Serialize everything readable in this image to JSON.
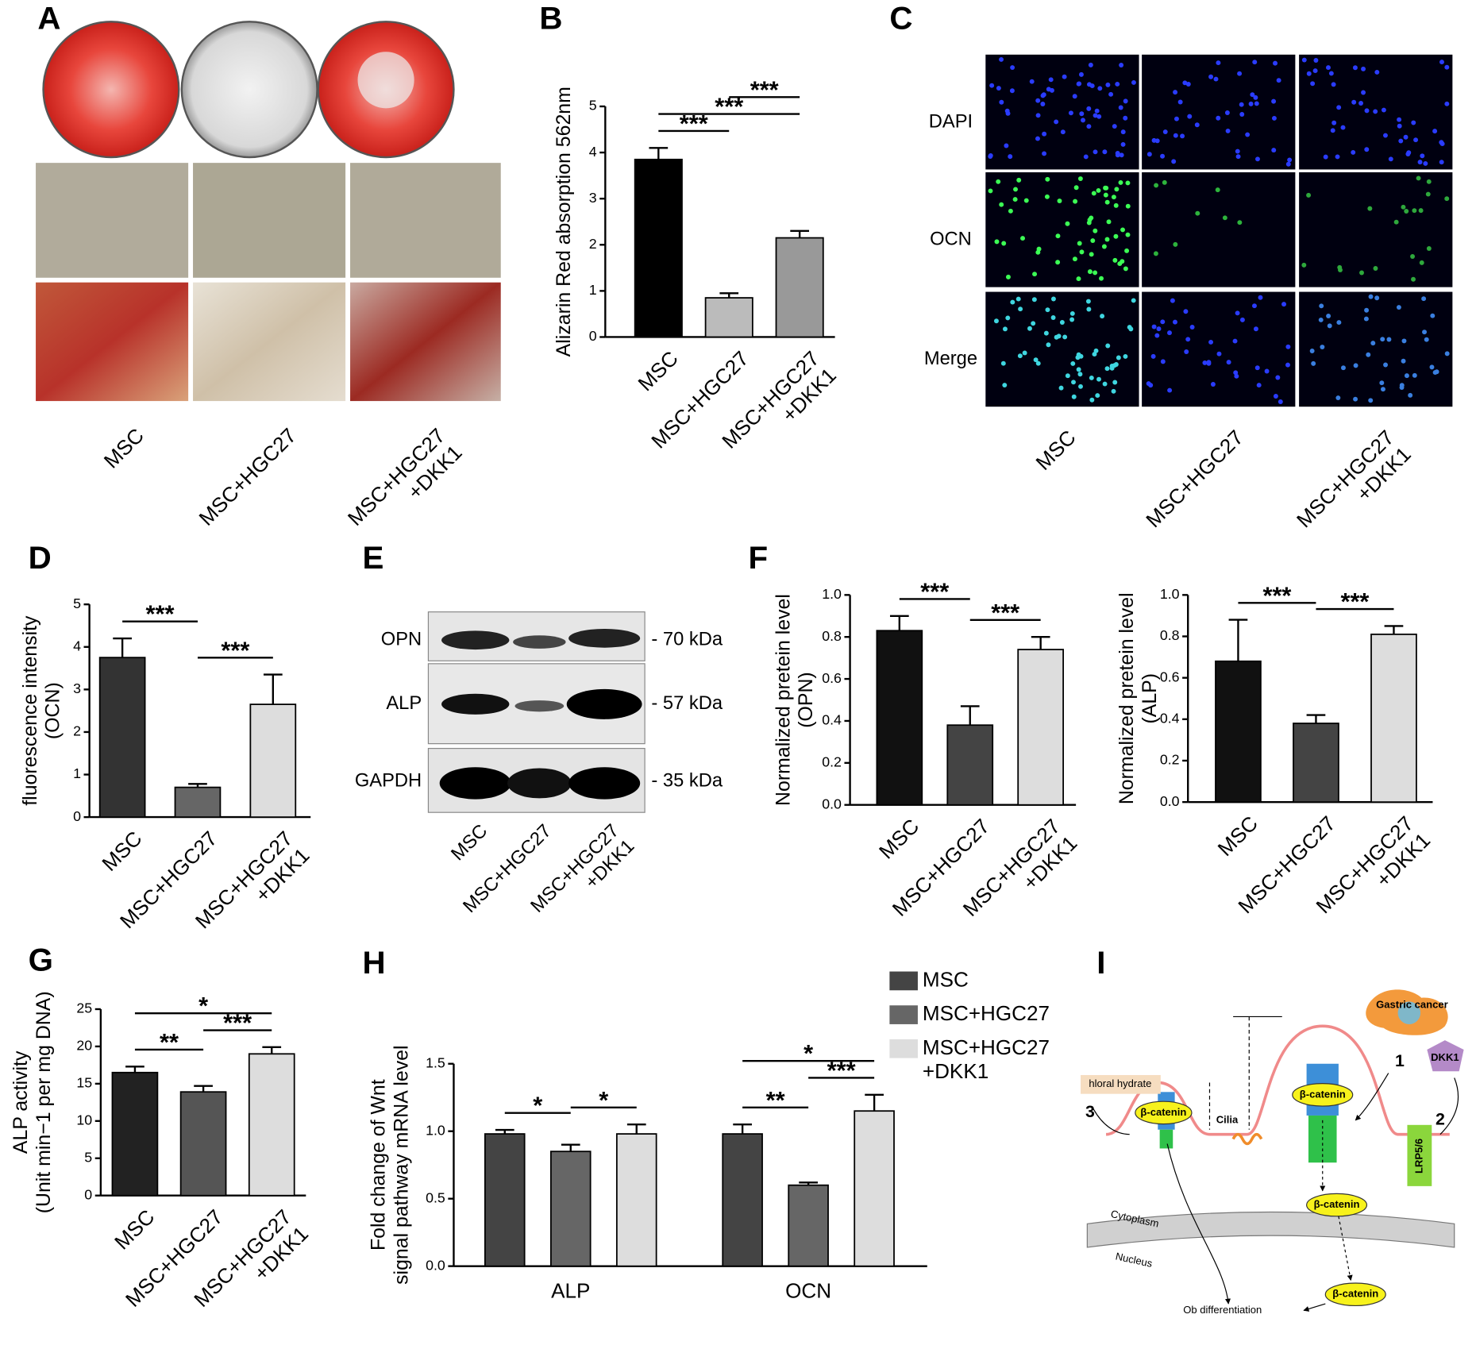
{
  "panel_a": {
    "label": "A",
    "columns": [
      "MSC",
      "MSC+HGC27",
      "MSC+HGC27\n+DKK1"
    ]
  },
  "chart_data": [
    {
      "type": "bar",
      "label": "B",
      "y_label": "Alizarin Red absorption 562nm",
      "categories": [
        "MSC",
        "MSC+HGC27",
        "MSC+HGC27\n+DKK1"
      ],
      "values": [
        3.85,
        0.85,
        2.15
      ],
      "errors": [
        0.25,
        0.1,
        0.15
      ],
      "colors": [
        "#000000",
        "#bbbbbb",
        "#999999"
      ],
      "ylim": [
        0,
        5
      ],
      "yticks": [
        0,
        1,
        2,
        3,
        4,
        5
      ],
      "comparisons": [
        {
          "pair": [
            0,
            1
          ],
          "label": "***"
        },
        {
          "pair": [
            0,
            2
          ],
          "label": "***"
        },
        {
          "pair": [
            1,
            2
          ],
          "label": "***"
        }
      ]
    },
    {
      "type": "bar",
      "label": "D",
      "y_label": "fluorescence  intensity\n(OCN)",
      "categories": [
        "MSC",
        "MSC+HGC27",
        "MSC+HGC27\n+DKK1"
      ],
      "values": [
        3.75,
        0.7,
        2.65
      ],
      "errors": [
        0.45,
        0.08,
        0.7
      ],
      "colors": [
        "#333333",
        "#666666",
        "#dddddd"
      ],
      "ylim": [
        0,
        5
      ],
      "yticks": [
        0,
        1,
        2,
        3,
        4,
        5
      ],
      "comparisons": [
        {
          "pair": [
            0,
            1
          ],
          "label": "***"
        },
        {
          "pair": [
            1,
            2
          ],
          "label": "***"
        }
      ]
    },
    {
      "type": "bar",
      "label": "F",
      "y_label": "Normalized pretein level\n(OPN)",
      "categories": [
        "MSC",
        "MSC+HGC27",
        "MSC+HGC27\n+DKK1"
      ],
      "values": [
        0.83,
        0.38,
        0.74
      ],
      "errors": [
        0.07,
        0.09,
        0.06
      ],
      "colors": [
        "#111111",
        "#444444",
        "#dddddd"
      ],
      "ylim": [
        0,
        1
      ],
      "yticks": [
        {
          "value": 0,
          "label": "0.0"
        },
        {
          "value": 0.2,
          "label": "0.2"
        },
        {
          "value": 0.4,
          "label": "0.4"
        },
        {
          "value": 0.6,
          "label": "0.6"
        },
        {
          "value": 0.8,
          "label": "0.8"
        },
        {
          "value": 1,
          "label": "1.0"
        }
      ],
      "comparisons": [
        {
          "pair": [
            0,
            1
          ],
          "label": "***"
        },
        {
          "pair": [
            1,
            2
          ],
          "label": "***"
        }
      ]
    },
    {
      "type": "bar",
      "y_label": "Normalized pretein level\n(ALP)",
      "categories": [
        "MSC",
        "MSC+HGC27",
        "MSC+HGC27\n+DKK1"
      ],
      "values": [
        0.68,
        0.38,
        0.81
      ],
      "errors": [
        0.2,
        0.04,
        0.04
      ],
      "colors": [
        "#111111",
        "#444444",
        "#dddddd"
      ],
      "ylim": [
        0,
        1
      ],
      "yticks": [
        {
          "value": 0,
          "label": "0.0"
        },
        {
          "value": 0.2,
          "label": "0.2"
        },
        {
          "value": 0.4,
          "label": "0.4"
        },
        {
          "value": 0.6,
          "label": "0.6"
        },
        {
          "value": 0.8,
          "label": "0.8"
        },
        {
          "value": 1,
          "label": "1.0"
        }
      ],
      "comparisons": [
        {
          "pair": [
            0,
            1
          ],
          "label": "***"
        },
        {
          "pair": [
            1,
            2
          ],
          "label": "***"
        }
      ]
    },
    {
      "type": "bar",
      "label": "G",
      "y_label": "ALP activity\n(Unit min−1 per mg DNA)",
      "categories": [
        "MSC",
        "MSC+HGC27",
        "MSC+HGC27\n+DKK1"
      ],
      "values": [
        16.5,
        13.9,
        19.0
      ],
      "errors": [
        0.8,
        0.8,
        0.9
      ],
      "colors": [
        "#222222",
        "#555555",
        "#dddddd"
      ],
      "ylim": [
        0,
        25
      ],
      "yticks": [
        0,
        5,
        10,
        15,
        20,
        25
      ],
      "comparisons": [
        {
          "pair": [
            0,
            1
          ],
          "label": "**"
        },
        {
          "pair": [
            1,
            2
          ],
          "label": "***"
        },
        {
          "pair": [
            0,
            2
          ],
          "label": "*"
        }
      ]
    },
    {
      "type": "grouped_bar",
      "label": "H",
      "y_label": "Fold change of Wnt\nsignal pathway mRNA level",
      "categories": [
        "ALP",
        "OCN"
      ],
      "series": [
        {
          "name": "MSC",
          "color": "#444444",
          "values": [
            0.98,
            0.98
          ],
          "errors": [
            0.03,
            0.07
          ]
        },
        {
          "name": "MSC+HGC27",
          "color": "#666666",
          "values": [
            0.85,
            0.6
          ],
          "errors": [
            0.05,
            0.02
          ]
        },
        {
          "name": "MSC+HGC27\n+DKK1",
          "color": "#dddddd",
          "values": [
            0.98,
            1.15
          ],
          "errors": [
            0.07,
            0.12
          ]
        }
      ],
      "ylim": [
        0,
        1.5
      ],
      "yticks": [
        {
          "value": 0,
          "label": "0.0"
        },
        {
          "value": 0.5,
          "label": "0.5"
        },
        {
          "value": 1,
          "label": "1.0"
        },
        {
          "value": 1.5,
          "label": "1.5"
        }
      ],
      "comparisons": [
        {
          "category": 0,
          "pair": [
            0,
            1
          ],
          "label": "*"
        },
        {
          "category": 0,
          "pair": [
            1,
            2
          ],
          "label": "*"
        },
        {
          "category": 1,
          "pair": [
            0,
            1
          ],
          "label": "**"
        },
        {
          "category": 1,
          "pair": [
            1,
            2
          ],
          "label": "***"
        },
        {
          "category": 1,
          "pair": [
            0,
            2
          ],
          "label": "*"
        }
      ]
    }
  ],
  "panel_c": {
    "label": "C",
    "rows": [
      "DAPI",
      "OCN",
      "Merge"
    ],
    "columns": [
      "MSC",
      "MSC+HGC27",
      "MSC+HGC27\n+DKK1"
    ]
  },
  "panel_e": {
    "label": "E",
    "rows": [
      "OPN",
      "ALP",
      "GAPDH"
    ],
    "sizes": [
      "- 70 kDa",
      "- 57 kDa",
      "- 35 kDa"
    ],
    "columns": [
      "MSC",
      "MSC+HGC27",
      "MSC+HGC27\n+DKK1"
    ]
  },
  "panel_i": {
    "label": "I",
    "gastric": "Gastric cancer",
    "dkk1": "DKK1",
    "lrp": "LRP5/6",
    "chloral": "hloral hydrate",
    "beta": [
      "β-catenin",
      "β-catenin",
      "β-catenin",
      "β-catenin"
    ],
    "cilia": "Cilia",
    "cytoplasm": "Cytoplasm",
    "nucleus": "Nucleus",
    "ob": "Ob differentiation",
    "steps": [
      "1",
      "2",
      "3"
    ]
  }
}
